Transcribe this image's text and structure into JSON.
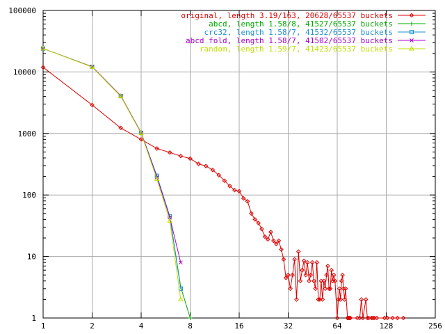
{
  "chart_data": {
    "type": "line",
    "title": "",
    "xlabel": "",
    "ylabel": "",
    "x_scale": "log2",
    "y_scale": "log10",
    "xlim": [
      1,
      256
    ],
    "ylim": [
      1,
      100000
    ],
    "x_ticks": [
      1,
      2,
      4,
      8,
      16,
      32,
      64,
      128,
      256
    ],
    "x_tick_labels": [
      "1",
      "2",
      "4",
      "8",
      "16",
      "32",
      "64",
      "128",
      "256"
    ],
    "y_ticks": [
      1,
      10,
      100,
      1000,
      10000,
      100000
    ],
    "y_tick_labels": [
      "1",
      "10",
      "100",
      "1000",
      "10000",
      "100000"
    ],
    "grid": true,
    "legend_position": "top-right",
    "series": [
      {
        "name": "original, length 3.19/163, 20628/65537 buckets",
        "color": "#dd0000",
        "marker": "diamond",
        "points": [
          [
            1,
            11900
          ],
          [
            2,
            2900
          ],
          [
            3,
            1230
          ],
          [
            4,
            800
          ],
          [
            5,
            570
          ],
          [
            6,
            490
          ],
          [
            7,
            430
          ],
          [
            8,
            390
          ],
          [
            9,
            320
          ],
          [
            10,
            295
          ],
          [
            11,
            255
          ],
          [
            12,
            210
          ],
          [
            13,
            170
          ],
          [
            14,
            140
          ],
          [
            15,
            120
          ],
          [
            16,
            115
          ],
          [
            17,
            88
          ],
          [
            18,
            79
          ],
          [
            19,
            50
          ],
          [
            20,
            40
          ],
          [
            21,
            35
          ],
          [
            22,
            28
          ],
          [
            23,
            21
          ],
          [
            24,
            19
          ],
          [
            25,
            25
          ],
          [
            26,
            18
          ],
          [
            27,
            16
          ],
          [
            28,
            18
          ],
          [
            29,
            13
          ],
          [
            30,
            9
          ],
          [
            31,
            4.5
          ],
          [
            32,
            5
          ],
          [
            33,
            3
          ],
          [
            34,
            5
          ],
          [
            35,
            9
          ],
          [
            36,
            2
          ],
          [
            37,
            12
          ],
          [
            38,
            4
          ],
          [
            39,
            6
          ],
          [
            40,
            8.5
          ],
          [
            41,
            5
          ],
          [
            42,
            8
          ],
          [
            43,
            4
          ],
          [
            44,
            5
          ],
          [
            45,
            8
          ],
          [
            46,
            4
          ],
          [
            47,
            3
          ],
          [
            48,
            8
          ],
          [
            49,
            2
          ],
          [
            50,
            2
          ],
          [
            51,
            4
          ],
          [
            52,
            2
          ],
          [
            53,
            4
          ],
          [
            54,
            3
          ],
          [
            55,
            5
          ],
          [
            56,
            7
          ],
          [
            57,
            3
          ],
          [
            58,
            3
          ],
          [
            59,
            6
          ],
          [
            60,
            4
          ],
          [
            61,
            5
          ],
          [
            62,
            4
          ],
          [
            64,
            1
          ],
          [
            65,
            2
          ],
          [
            66,
            3
          ],
          [
            67,
            2
          ],
          [
            68,
            4
          ],
          [
            69,
            5
          ],
          [
            70,
            3
          ],
          [
            71,
            2
          ],
          [
            72,
            3
          ],
          [
            74,
            1
          ],
          [
            75,
            1
          ],
          [
            76,
            1
          ],
          [
            77,
            1
          ],
          [
            85,
            1
          ],
          [
            88,
            1
          ],
          [
            90,
            2
          ],
          [
            92,
            1
          ],
          [
            96,
            2
          ],
          [
            98,
            1
          ],
          [
            100,
            1
          ],
          [
            104,
            1
          ],
          [
            106,
            1
          ],
          [
            108,
            1
          ],
          [
            112,
            1
          ],
          [
            125,
            1
          ],
          [
            130,
            1
          ],
          [
            140,
            1
          ],
          [
            150,
            1
          ],
          [
            163,
            1
          ]
        ]
      },
      {
        "name": "abcd, length 1.58/8, 41527/65537 buckets",
        "color": "#00aa00",
        "marker": "plus",
        "points": [
          [
            1,
            24000
          ],
          [
            2,
            12200
          ],
          [
            3,
            4100
          ],
          [
            4,
            1030
          ],
          [
            5,
            200
          ],
          [
            6,
            45
          ],
          [
            7,
            3.2
          ],
          [
            8,
            1
          ]
        ]
      },
      {
        "name": "crc32, length 1.58/7, 41532/65537 buckets",
        "color": "#1c8ed0",
        "marker": "square",
        "points": [
          [
            1,
            24000
          ],
          [
            2,
            12100
          ],
          [
            3,
            4050
          ],
          [
            4,
            1020
          ],
          [
            5,
            205
          ],
          [
            6,
            45
          ],
          [
            7,
            3
          ]
        ]
      },
      {
        "name": "abcd fold, length 1.58/7, 41502/65537 buckets",
        "color": "#aa00cc",
        "marker": "x",
        "points": [
          [
            1,
            24000
          ],
          [
            2,
            12150
          ],
          [
            3,
            4080
          ],
          [
            4,
            1025
          ],
          [
            5,
            195
          ],
          [
            6,
            43
          ],
          [
            7,
            8
          ]
        ]
      },
      {
        "name": "random, length 1.59/7, 41423/65537 buckets",
        "color": "#bfe000",
        "marker": "triangle",
        "points": [
          [
            1,
            24000
          ],
          [
            2,
            12000
          ],
          [
            3,
            4000
          ],
          [
            4,
            1000
          ],
          [
            5,
            180
          ],
          [
            6,
            38
          ],
          [
            7,
            2
          ]
        ]
      }
    ]
  }
}
